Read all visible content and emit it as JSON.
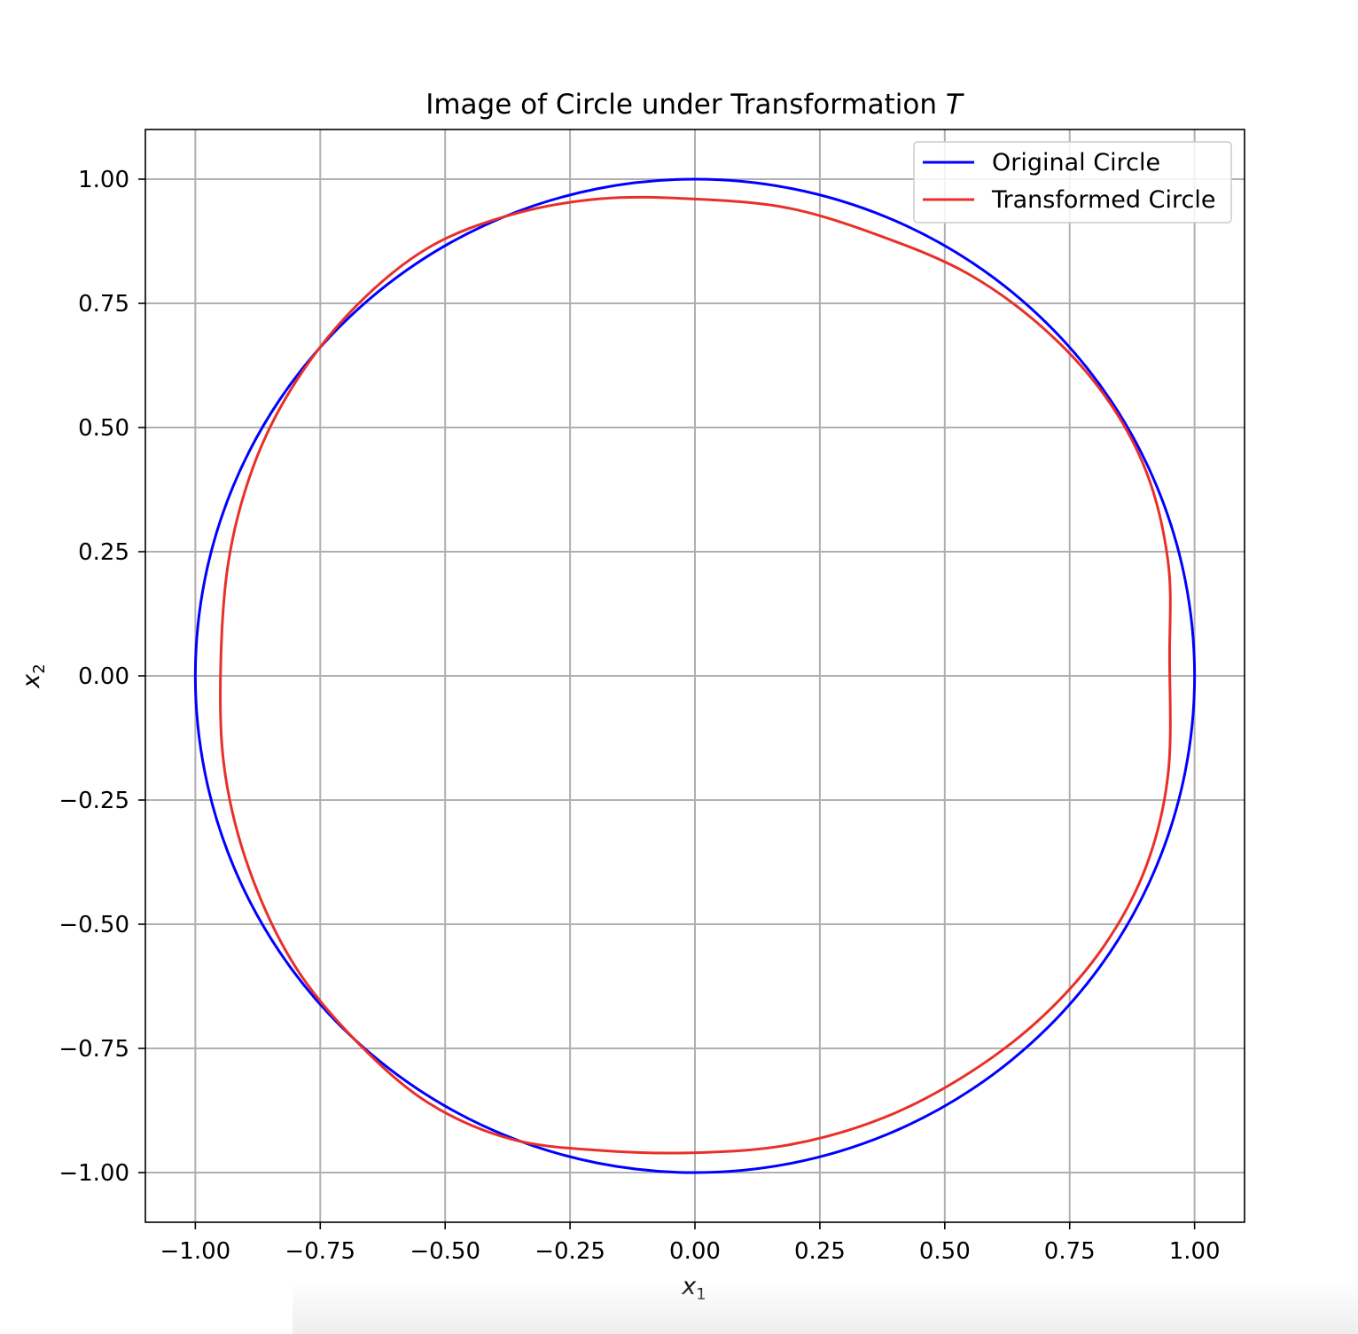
{
  "chart_data": {
    "type": "line",
    "title": "Image of Circle under Transformation T",
    "title_prefix": "Image of Circle under Transformation ",
    "title_symbol": "T",
    "xlabel": "x",
    "xlabel_sub": "1",
    "ylabel": "x",
    "ylabel_sub": "2",
    "xlim": [
      -1.1,
      1.1
    ],
    "ylim": [
      -1.1,
      1.1
    ],
    "xticks": [
      -1.0,
      -0.75,
      -0.5,
      -0.25,
      0.0,
      0.25,
      0.5,
      0.75,
      1.0
    ],
    "yticks": [
      -1.0,
      -0.75,
      -0.5,
      -0.25,
      0.0,
      0.25,
      0.5,
      0.75,
      1.0
    ],
    "xtick_labels": [
      "−1.00",
      "−0.75",
      "−0.50",
      "−0.25",
      "0.00",
      "0.25",
      "0.50",
      "0.75",
      "1.00"
    ],
    "ytick_labels": [
      "−1.00",
      "−0.75",
      "−0.50",
      "−0.25",
      "0.00",
      "0.25",
      "0.50",
      "0.75",
      "1.00"
    ],
    "grid": true,
    "legend_position": "top-right",
    "series": [
      {
        "name": "Original Circle",
        "color": "#0000ff",
        "x": [
          1.0,
          0.9808,
          0.9239,
          0.8315,
          0.7071,
          0.5556,
          0.3827,
          0.1951,
          0.0,
          -0.1951,
          -0.3827,
          -0.5556,
          -0.7071,
          -0.8315,
          -0.9239,
          -0.9808,
          -1.0,
          -0.9808,
          -0.9239,
          -0.8315,
          -0.7071,
          -0.5556,
          -0.3827,
          -0.1951,
          0.0,
          0.1951,
          0.3827,
          0.5556,
          0.7071,
          0.8315,
          0.9239,
          0.9808,
          1.0
        ],
        "y": [
          0.0,
          0.1951,
          0.3827,
          0.5556,
          0.7071,
          0.8315,
          0.9239,
          0.9808,
          1.0,
          0.9808,
          0.9239,
          0.8315,
          0.7071,
          0.5556,
          0.3827,
          0.1951,
          0.0,
          -0.1951,
          -0.3827,
          -0.5556,
          -0.7071,
          -0.8315,
          -0.9239,
          -0.9808,
          -1.0,
          -0.9808,
          -0.9239,
          -0.8315,
          -0.7071,
          -0.5556,
          -0.3827,
          -0.1951,
          0.0
        ]
      },
      {
        "name": "Transformed Circle",
        "color": "#e8302a",
        "x": [
          0.95,
          0.9472,
          0.9039,
          0.8188,
          0.6971,
          0.5481,
          0.3772,
          0.1903,
          0.0,
          -0.1876,
          -0.3685,
          -0.5345,
          -0.6787,
          -0.7987,
          -0.8839,
          -0.9356,
          -0.95,
          -0.9356,
          -0.8839,
          -0.7987,
          -0.6787,
          -0.5345,
          -0.3685,
          -0.1876,
          0.0,
          0.1903,
          0.3772,
          0.5481,
          0.6971,
          0.8188,
          0.9039,
          0.9472,
          0.95
        ],
        "y": [
          0.04,
          0.2276,
          0.4096,
          0.5662,
          0.7001,
          0.8087,
          0.8834,
          0.9412,
          0.96,
          0.9607,
          0.9282,
          0.8614,
          0.7441,
          0.5927,
          0.4217,
          0.2173,
          -0.04,
          -0.2266,
          -0.4124,
          -0.5873,
          -0.7347,
          -0.8591,
          -0.9325,
          -0.9556,
          -0.96,
          -0.9438,
          -0.8898,
          -0.8,
          -0.6846,
          -0.5437,
          -0.3814,
          -0.1957,
          0.04
        ]
      }
    ]
  }
}
